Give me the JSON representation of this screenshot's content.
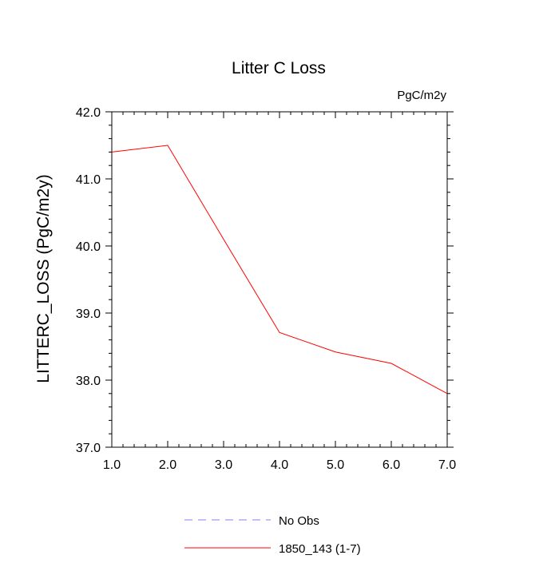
{
  "chart_data": {
    "type": "line",
    "title": "Litter C Loss",
    "units_label": "PgC/m2y",
    "ylabel": "LITTERC_LOSS  (PgC/m2y)",
    "xlabel": "",
    "xlim": [
      1.0,
      7.0
    ],
    "ylim": [
      37.0,
      42.0
    ],
    "x_ticks": [
      1.0,
      2.0,
      3.0,
      4.0,
      5.0,
      6.0,
      7.0
    ],
    "x_tick_labels": [
      "1.0",
      "2.0",
      "3.0",
      "4.0",
      "5.0",
      "6.0",
      "7.0"
    ],
    "y_ticks": [
      37.0,
      38.0,
      39.0,
      40.0,
      41.0,
      42.0
    ],
    "y_tick_labels": [
      "37.0",
      "38.0",
      "39.0",
      "40.0",
      "41.0",
      "42.0"
    ],
    "grid": false,
    "legend_position": "bottom",
    "series": [
      {
        "name": "No Obs",
        "color": "#8080ff",
        "dash": true,
        "x": [],
        "values": []
      },
      {
        "name": "1850_143 (1-7)",
        "color": "#ff0000",
        "dash": false,
        "x": [
          1.0,
          2.0,
          3.0,
          4.0,
          5.0,
          6.0,
          7.0
        ],
        "values": [
          41.4,
          41.5,
          40.1,
          38.71,
          38.42,
          38.25,
          37.8
        ]
      }
    ]
  }
}
